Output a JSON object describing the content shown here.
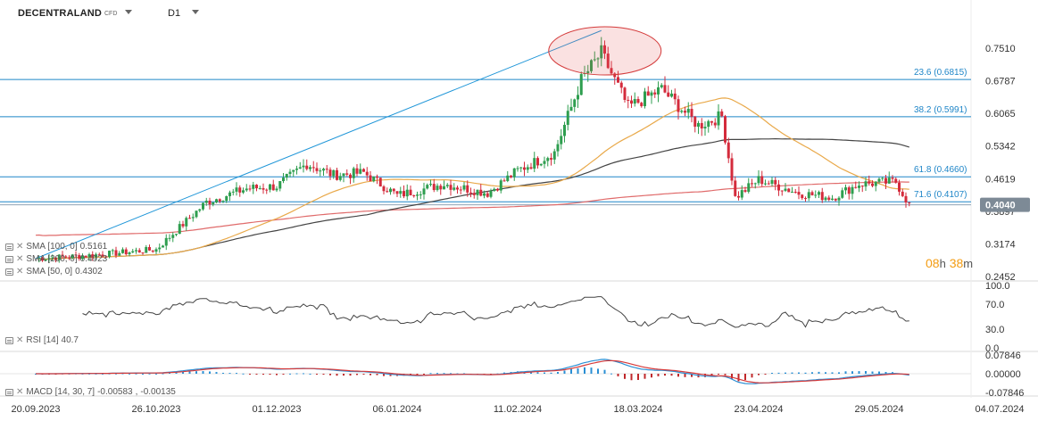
{
  "header": {
    "symbol": "DECENTRALAND",
    "instrument_type": "CFD",
    "timeframe": "D1"
  },
  "countdown": {
    "hours": "08",
    "h_unit": "h",
    "minutes": "38",
    "m_unit": "m"
  },
  "colors": {
    "up": "#2e9e4f",
    "down": "#d42b3c",
    "fib": "#1f86c8",
    "trend": "#1f96d8",
    "sma100": "#e9a94a",
    "sma200": "#444444",
    "sma50": "#e06b6b",
    "price_tag": "#7d8a96",
    "rsi": "#444444",
    "macd": "#2a8fd4",
    "signal": "#d63a3a"
  },
  "chart_data": [
    {
      "type": "candlestick",
      "y_axis_labels": [
        "0.7510",
        "0.6787",
        "0.6065",
        "0.5342",
        "0.4619",
        "0.3897",
        "0.3174",
        "0.2452"
      ],
      "ylim": [
        0.2452,
        0.8
      ],
      "x_axis_labels": [
        "20.09.2023",
        "26.10.2023",
        "01.12.2023",
        "06.01.2024",
        "11.02.2024",
        "18.03.2024",
        "23.04.2024",
        "29.05.2024",
        "04.07.2024"
      ],
      "last_price": "0.4040",
      "fib_levels": [
        {
          "label": "23.6 (0.6815)",
          "value": 0.6815
        },
        {
          "label": "38.2 (0.5991)",
          "value": 0.5991
        },
        {
          "label": "61.8 (0.4660)",
          "value": 0.466
        },
        {
          "label": "71.6 (0.4107)",
          "value": 0.4107
        }
      ],
      "indicators": [
        {
          "label": "SMA [100, 0]",
          "value": "0.5161"
        },
        {
          "label": "SMA [200, 0]",
          "value": "0.4923"
        },
        {
          "label": "SMA [50, 0]",
          "value": "0.4302"
        }
      ],
      "price_waypoints": [
        [
          "20.09.2023",
          0.285
        ],
        [
          "06.10.2023",
          0.292
        ],
        [
          "26.10.2023",
          0.305
        ],
        [
          "10.11.2023",
          0.41
        ],
        [
          "22.11.2023",
          0.44
        ],
        [
          "01.12.2023",
          0.445
        ],
        [
          "10.12.2023",
          0.495
        ],
        [
          "18.12.2023",
          0.47
        ],
        [
          "27.12.2023",
          0.475
        ],
        [
          "06.01.2024",
          0.425
        ],
        [
          "20.01.2024",
          0.45
        ],
        [
          "02.02.2024",
          0.43
        ],
        [
          "11.02.2024",
          0.48
        ],
        [
          "22.02.2024",
          0.52
        ],
        [
          "01.03.2024",
          0.68
        ],
        [
          "07.03.2024",
          0.74
        ],
        [
          "15.03.2024",
          0.62
        ],
        [
          "25.03.2024",
          0.66
        ],
        [
          "05.04.2024",
          0.58
        ],
        [
          "12.04.2024",
          0.6
        ],
        [
          "16.04.2024",
          0.42
        ],
        [
          "23.04.2024",
          0.46
        ],
        [
          "05.05.2024",
          0.43
        ],
        [
          "15.05.2024",
          0.42
        ],
        [
          "23.05.2024",
          0.45
        ],
        [
          "03.06.2024",
          0.455
        ],
        [
          "07.06.2024",
          0.404
        ]
      ]
    },
    {
      "type": "line",
      "name": "RSI [14]",
      "value": "40.7",
      "ylim": [
        0,
        100
      ],
      "y_axis_labels": [
        "100.0",
        "70.0",
        "30.0",
        "0.0"
      ]
    },
    {
      "type": "bar",
      "name": "MACD [14, 30, 7]",
      "value_macd": "-0.00583",
      "value_signal": "-0.00135",
      "y_axis_labels": [
        "0.07846",
        "0.00000",
        "-0.07846"
      ]
    }
  ]
}
